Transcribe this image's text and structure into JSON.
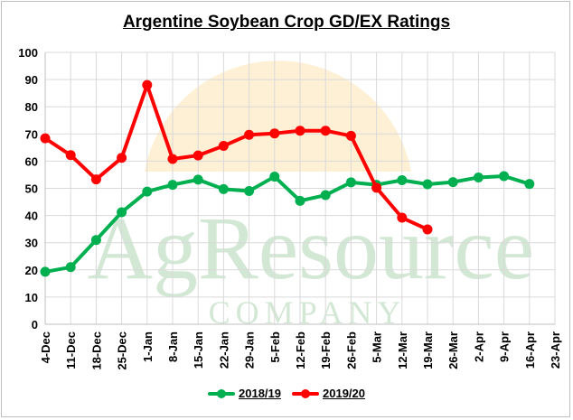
{
  "chart_data": {
    "type": "line",
    "title": "Argentine Soybean Crop GD/EX Ratings",
    "categories": [
      "4-Dec",
      "11-Dec",
      "18-Dec",
      "25-Dec",
      "1-Jan",
      "8-Jan",
      "15-Jan",
      "22-Jan",
      "29-Jan",
      "5-Feb",
      "12-Feb",
      "19-Feb",
      "26-Feb",
      "5-Mar",
      "12-Mar",
      "19-Mar",
      "26-Mar",
      "2-Apr",
      "9-Apr",
      "16-Apr",
      "23-Apr"
    ],
    "ylim": [
      0,
      100
    ],
    "yticks": [
      0,
      10,
      20,
      30,
      40,
      50,
      60,
      70,
      80,
      90,
      100
    ],
    "grid": true,
    "legend_position": "bottom",
    "series": [
      {
        "name": "2018/19",
        "color": "#00b050",
        "values": [
          19.3,
          21,
          31,
          41.2,
          48.8,
          51.3,
          53.2,
          49.7,
          49,
          54.3,
          45.4,
          47.5,
          52.2,
          51.3,
          53,
          51.5,
          52.3,
          54,
          54.5,
          51.6,
          null
        ]
      },
      {
        "name": "2019/20",
        "color": "#ff0000",
        "values": [
          68.4,
          62.2,
          53.3,
          61.2,
          88,
          60.8,
          62.1,
          65.6,
          69.7,
          70.2,
          71.2,
          71.2,
          69.3,
          50.2,
          39.2,
          34.9,
          null,
          null,
          null,
          null,
          null
        ]
      }
    ]
  },
  "watermark": {
    "line1": "AgResource",
    "line2": "COMPANY"
  },
  "colors": {
    "grid": "#d9d9d9",
    "axis": "#bfbfbf",
    "watermark_text": "#c5e0c8",
    "watermark_sun": "#fbe3b0"
  }
}
